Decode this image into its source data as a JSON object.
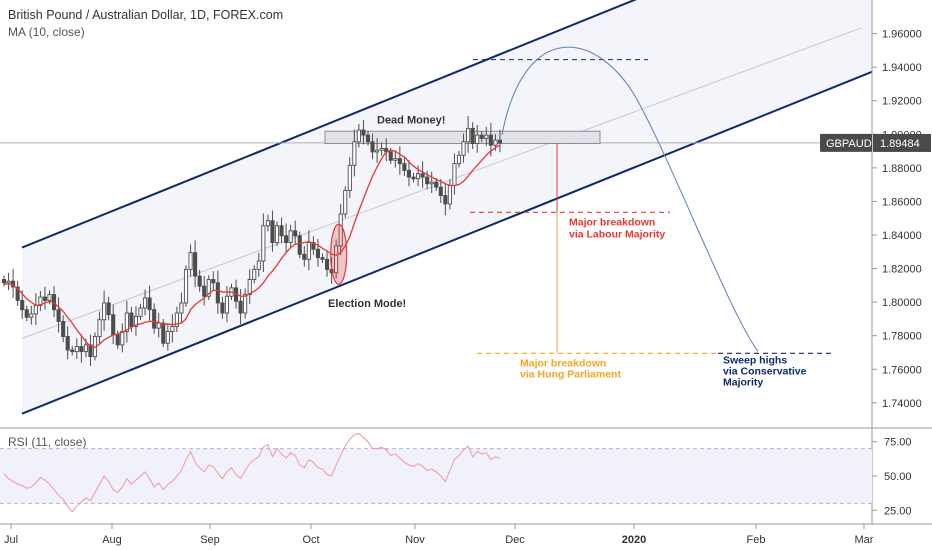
{
  "header": {
    "title": "British Pound / Australian Dollar, 1D, FOREX.com",
    "indicator": "MA (10, close)"
  },
  "rsi_label": "RSI (11, close)",
  "price_tag": {
    "symbol": "GBPAUD",
    "value": "1.89484",
    "bg_color": "#4a4a4a"
  },
  "colors": {
    "candle": "#4d4d4d",
    "ma": "#e53935",
    "channel": "#0d2a6b",
    "channel_fill": "#f4f5fb",
    "red": "#e53935",
    "orange": "#f5a623",
    "blue": "#0d2a6b",
    "arc": "#5b7fb5",
    "rsi": "#ef9a9a",
    "rsi_band": "#b5b5d8"
  },
  "annotations": {
    "dead_money": "Dead Money!",
    "election_mode": "Election Mode!",
    "labour": [
      "Major breakdown",
      "via Labour Majority"
    ],
    "hung": [
      "Major breakdown",
      "via Hung Parliament"
    ],
    "conservative": [
      "Sweep highs",
      "via Conservative",
      "Majority"
    ]
  },
  "chart_data": [
    {
      "type": "candlestick",
      "title": "British Pound / Australian Dollar, 1D, FOREX.com",
      "x_labels": [
        "Jul",
        "Aug",
        "Sep",
        "Oct",
        "Nov",
        "Dec",
        "2020",
        "Feb",
        "Mar"
      ],
      "y_ticks": [
        "1.74000",
        "1.76000",
        "1.78000",
        "1.80000",
        "1.82000",
        "1.84000",
        "1.86000",
        "1.88000",
        "1.90000",
        "1.92000",
        "1.94000",
        "1.96000"
      ],
      "ylim": [
        1.725,
        1.98
      ],
      "last_price": 1.89484,
      "closes": [
        1.8115,
        1.8125,
        1.809,
        1.801,
        1.7955,
        1.791,
        1.793,
        1.798,
        1.803,
        1.801,
        1.8045,
        1.7955,
        1.7885,
        1.7795,
        1.7715,
        1.7705,
        1.7735,
        1.7705,
        1.7745,
        1.7675,
        1.7795,
        1.7895,
        1.7995,
        1.7925,
        1.7805,
        1.7745,
        1.7825,
        1.7935,
        1.7855,
        1.7915,
        1.7965,
        1.8025,
        1.7955,
        1.7845,
        1.7875,
        1.7755,
        1.7825,
        1.7855,
        1.7935,
        1.7995,
        1.8195,
        1.8295,
        1.8155,
        1.8095,
        1.8035,
        1.8135,
        1.8115,
        1.7995,
        1.7935,
        1.8035,
        1.8085,
        1.8005,
        1.7935,
        1.8045,
        1.8135,
        1.8195,
        1.8245,
        1.8455,
        1.8485,
        1.8355,
        1.8455,
        1.8395,
        1.8355,
        1.8425,
        1.8395,
        1.8285,
        1.8255,
        1.8355,
        1.8315,
        1.8265,
        1.8255,
        1.8195,
        1.8175,
        1.8335,
        1.8525,
        1.8665,
        1.8815,
        1.8955,
        1.9025,
        1.8995,
        1.8955,
        1.8895,
        1.8905,
        1.8915,
        1.8895,
        1.8845,
        1.8855,
        1.8825,
        1.8785,
        1.8745,
        1.8735,
        1.8765,
        1.8745,
        1.8705,
        1.8715,
        1.8685,
        1.8635,
        1.8585,
        1.8695,
        1.8825,
        1.8875,
        1.8955,
        1.9035,
        1.8945,
        1.8995,
        1.8975,
        1.8995,
        1.8935,
        1.8965,
        1.8948
      ],
      "ma10": [
        1.8105,
        1.811,
        1.81,
        1.808,
        1.805,
        1.802,
        1.8,
        1.798,
        1.7985,
        1.7995,
        1.8005,
        1.7995,
        1.797,
        1.7945,
        1.791,
        1.7875,
        1.7835,
        1.78,
        1.7765,
        1.7735,
        1.773,
        1.775,
        1.7775,
        1.779,
        1.7805,
        1.781,
        1.782,
        1.7835,
        1.785,
        1.7865,
        1.787,
        1.788,
        1.7885,
        1.7885,
        1.788,
        1.7865,
        1.787,
        1.7865,
        1.787,
        1.7875,
        1.79,
        1.7955,
        1.7985,
        1.8005,
        1.8025,
        1.805,
        1.807,
        1.807,
        1.806,
        1.806,
        1.806,
        1.805,
        1.8035,
        1.8035,
        1.805,
        1.8065,
        1.8085,
        1.8115,
        1.8155,
        1.8185,
        1.822,
        1.826,
        1.8295,
        1.8325,
        1.8345,
        1.835,
        1.8355,
        1.836,
        1.835,
        1.834,
        1.832,
        1.8305,
        1.8285,
        1.828,
        1.8295,
        1.8335,
        1.839,
        1.847,
        1.8545,
        1.8615,
        1.8685,
        1.875,
        1.8805,
        1.8855,
        1.8895,
        1.8905,
        1.89,
        1.888,
        1.8865,
        1.8835,
        1.881,
        1.879,
        1.8775,
        1.876,
        1.8745,
        1.873,
        1.872,
        1.8705,
        1.8695,
        1.8695,
        1.87,
        1.872,
        1.875,
        1.8785,
        1.8815,
        1.8845,
        1.8875,
        1.89,
        1.892,
        1.8935
      ],
      "channel": {
        "upper": [
          [
            1.8325,
            1.9838
          ],
          [
            1.9705
          ]
        ],
        "lower": [
          [
            1.7335,
            1.9372
          ]
        ],
        "mid": [
          [
            1.7784,
            1.9635
          ]
        ]
      },
      "levels": {
        "dead_money_zone": [
          1.8945,
          1.9018
        ],
        "top_dashed": 1.9445,
        "labour_target": 1.8535,
        "hung_target": 1.7695,
        "arc_peak": 1.9435
      }
    },
    {
      "type": "line",
      "title": "RSI (11, close)",
      "y_ticks": [
        "25.00",
        "50.00",
        "75.00"
      ],
      "ylim": [
        15,
        85
      ],
      "bands": [
        30,
        70
      ],
      "values": [
        52,
        48,
        46,
        44,
        43,
        41,
        42,
        45,
        49,
        47,
        44,
        40,
        36,
        33,
        28,
        24,
        28,
        31,
        34,
        32,
        38,
        44,
        50,
        46,
        40,
        38,
        42,
        48,
        44,
        47,
        50,
        53,
        48,
        42,
        45,
        40,
        44,
        46,
        50,
        54,
        62,
        68,
        60,
        56,
        53,
        58,
        57,
        52,
        48,
        53,
        56,
        51,
        48,
        54,
        59,
        62,
        64,
        71,
        73,
        64,
        70,
        66,
        63,
        67,
        65,
        58,
        56,
        62,
        60,
        56,
        55,
        51,
        50,
        58,
        65,
        72,
        77,
        80,
        81,
        78,
        75,
        70,
        70,
        71,
        69,
        65,
        66,
        63,
        60,
        58,
        57,
        59,
        57,
        54,
        55,
        53,
        50,
        46,
        54,
        62,
        65,
        69,
        72,
        64,
        68,
        66,
        67,
        62,
        64,
        63
      ]
    }
  ]
}
